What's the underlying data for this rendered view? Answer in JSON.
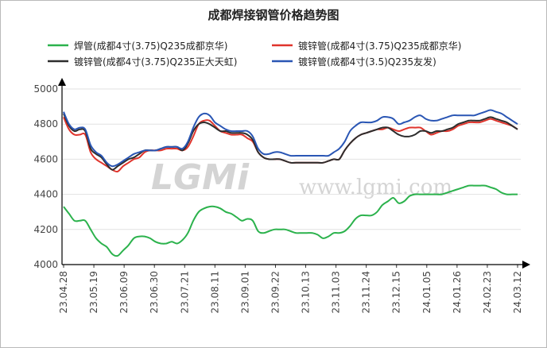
{
  "chart_data": {
    "type": "line",
    "title": "成都焊接钢管价格趋势图",
    "xlabel": "",
    "ylabel": "",
    "ylim": [
      4000,
      5000
    ],
    "yticks": [
      4000,
      4200,
      4400,
      4600,
      4800,
      5000
    ],
    "x_tick_labels": [
      "23.04.28",
      "23.05.19",
      "23.06.09",
      "23.06.30",
      "23.07.21",
      "23.08.11",
      "23.09.01",
      "23.09.22",
      "23.10.13",
      "23.11.03",
      "23.11.24",
      "23.12.15",
      "24.01.05",
      "24.01.26",
      "24.02.23",
      "24.03.12"
    ],
    "legend_placement": "top",
    "grid": true,
    "watermark": {
      "logo": "LGMi",
      "url": "www.lgmi.com"
    },
    "series": [
      {
        "name": "焊管(成都4寸(3.75)Q235成都京华)",
        "color": "#2bb24c",
        "values": [
          4330,
          4290,
          4250,
          4250,
          4250,
          4200,
          4150,
          4120,
          4100,
          4060,
          4050,
          4080,
          4110,
          4150,
          4160,
          4160,
          4150,
          4130,
          4120,
          4120,
          4130,
          4120,
          4140,
          4180,
          4250,
          4300,
          4320,
          4330,
          4330,
          4320,
          4300,
          4290,
          4270,
          4250,
          4260,
          4250,
          4190,
          4180,
          4190,
          4200,
          4200,
          4200,
          4190,
          4180,
          4180,
          4180,
          4180,
          4170,
          4150,
          4160,
          4180,
          4180,
          4190,
          4220,
          4260,
          4280,
          4280,
          4280,
          4300,
          4340,
          4360,
          4380,
          4350,
          4360,
          4390,
          4400,
          4400,
          4400,
          4400,
          4400,
          4400,
          4410,
          4420,
          4430,
          4440,
          4450,
          4450,
          4450,
          4450,
          4440,
          4430,
          4410,
          4400,
          4400,
          4400
        ]
      },
      {
        "name": "镀锌管(成都4寸(3.75)Q235成都京华)",
        "color": "#e0342c",
        "values": [
          4840,
          4770,
          4740,
          4740,
          4740,
          4640,
          4600,
          4580,
          4560,
          4540,
          4530,
          4560,
          4580,
          4600,
          4610,
          4640,
          4650,
          4650,
          4650,
          4660,
          4660,
          4660,
          4650,
          4670,
          4730,
          4800,
          4820,
          4820,
          4790,
          4760,
          4750,
          4740,
          4740,
          4740,
          4720,
          4700,
          4640,
          4610,
          4600,
          4600,
          4600,
          4590,
          4580,
          4580,
          4580,
          4580,
          4580,
          4580,
          4580,
          4590,
          4600,
          4600,
          4650,
          4690,
          4720,
          4740,
          4750,
          4760,
          4770,
          4770,
          4780,
          4770,
          4760,
          4770,
          4780,
          4780,
          4780,
          4760,
          4740,
          4750,
          4760,
          4760,
          4770,
          4790,
          4800,
          4810,
          4810,
          4810,
          4820,
          4830,
          4820,
          4810,
          4800,
          4790,
          4770
        ]
      },
      {
        "name": "镀锌管(成都4寸(3.75)Q235正大天虹)",
        "color": "#2d2d2d",
        "values": [
          4860,
          4790,
          4760,
          4770,
          4760,
          4660,
          4630,
          4610,
          4570,
          4540,
          4560,
          4580,
          4600,
          4610,
          4630,
          4650,
          4650,
          4650,
          4660,
          4670,
          4670,
          4670,
          4650,
          4690,
          4760,
          4800,
          4810,
          4800,
          4780,
          4760,
          4760,
          4750,
          4750,
          4750,
          4740,
          4710,
          4640,
          4610,
          4600,
          4600,
          4600,
          4590,
          4580,
          4580,
          4580,
          4580,
          4580,
          4580,
          4580,
          4590,
          4600,
          4600,
          4650,
          4690,
          4720,
          4740,
          4750,
          4760,
          4770,
          4780,
          4780,
          4760,
          4740,
          4730,
          4730,
          4740,
          4760,
          4760,
          4750,
          4760,
          4760,
          4770,
          4780,
          4800,
          4810,
          4820,
          4820,
          4820,
          4830,
          4840,
          4830,
          4820,
          4810,
          4790,
          4770
        ]
      },
      {
        "name": "镀锌管(成都4寸(3.5)Q235友发)",
        "color": "#2a56b4",
        "values": [
          4870,
          4800,
          4770,
          4780,
          4770,
          4680,
          4640,
          4620,
          4580,
          4560,
          4570,
          4590,
          4610,
          4630,
          4640,
          4650,
          4650,
          4650,
          4660,
          4670,
          4670,
          4670,
          4660,
          4700,
          4780,
          4840,
          4860,
          4850,
          4810,
          4790,
          4770,
          4760,
          4760,
          4760,
          4760,
          4730,
          4660,
          4630,
          4630,
          4640,
          4640,
          4630,
          4620,
          4620,
          4620,
          4620,
          4620,
          4620,
          4620,
          4620,
          4640,
          4660,
          4700,
          4760,
          4790,
          4810,
          4810,
          4810,
          4820,
          4840,
          4840,
          4830,
          4800,
          4810,
          4820,
          4840,
          4850,
          4830,
          4820,
          4820,
          4830,
          4840,
          4850,
          4850,
          4850,
          4850,
          4850,
          4860,
          4870,
          4880,
          4870,
          4860,
          4840,
          4820,
          4800
        ]
      }
    ]
  }
}
